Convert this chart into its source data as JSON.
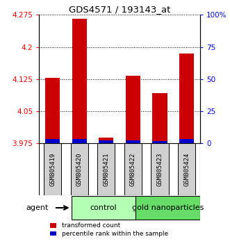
{
  "title": "GDS4571 / 193143_at",
  "samples": [
    "GSM805419",
    "GSM805420",
    "GSM805421",
    "GSM805422",
    "GSM805423",
    "GSM805424"
  ],
  "red_values": [
    4.128,
    4.265,
    3.988,
    4.133,
    4.093,
    4.185
  ],
  "blue_percentiles": [
    3.5,
    3.5,
    2.5,
    2.5,
    2.0,
    3.5
  ],
  "ylim_left": [
    3.975,
    4.275
  ],
  "ylim_right": [
    0,
    100
  ],
  "yticks_left": [
    3.975,
    4.05,
    4.125,
    4.2,
    4.275
  ],
  "yticks_right": [
    0,
    25,
    50,
    75,
    100
  ],
  "ytick_labels_left": [
    "3.975",
    "4.05",
    "4.125",
    "4.2",
    "4.275"
  ],
  "ytick_labels_right": [
    "0",
    "25",
    "50",
    "75",
    "100%"
  ],
  "groups": [
    {
      "label": "control",
      "indices": [
        0,
        1,
        2
      ],
      "color": "#b3ffb3"
    },
    {
      "label": "gold nanoparticles",
      "indices": [
        3,
        4,
        5
      ],
      "color": "#66dd66"
    }
  ],
  "agent_label": "agent",
  "bar_width": 0.55,
  "red_color": "#cc0000",
  "blue_color": "#0000cc",
  "baseline": 3.975,
  "sample_box_color": "#d0d0d0"
}
